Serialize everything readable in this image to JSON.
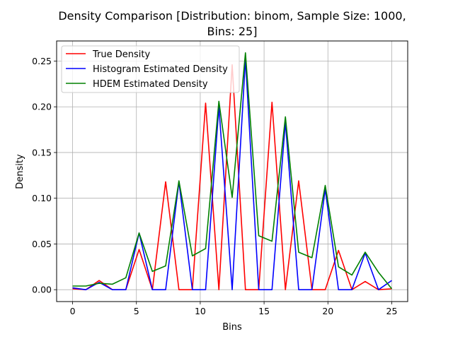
{
  "chart_data": {
    "type": "line",
    "title_line1": "Density Comparison [Distribution: binom, Sample Size: 1000,",
    "title_line2": "Bins: 25]",
    "xlabel": "Bins",
    "ylabel": "Density",
    "xlim": [
      -1.25,
      26.25
    ],
    "ylim": [
      -0.013,
      0.272
    ],
    "xticks": [
      0,
      5,
      10,
      15,
      20,
      25
    ],
    "xtick_labels": [
      "0",
      "5",
      "10",
      "15",
      "20",
      "25"
    ],
    "yticks": [
      0.0,
      0.05,
      0.1,
      0.15,
      0.2,
      0.25
    ],
    "ytick_labels": [
      "0.00",
      "0.05",
      "0.10",
      "0.15",
      "0.20",
      "0.25"
    ],
    "grid": true,
    "legend_position": "top-left",
    "x": [
      0,
      1.04,
      2.08,
      3.12,
      4.17,
      5.21,
      6.25,
      7.29,
      8.33,
      9.38,
      10.42,
      11.46,
      12.5,
      13.54,
      14.58,
      15.62,
      16.67,
      17.71,
      18.75,
      19.79,
      20.83,
      21.88,
      22.92,
      23.96,
      25.0
    ],
    "series": [
      {
        "name": "True Density",
        "color": "#ff0000",
        "values": [
          0.001,
          0.0,
          0.01,
          0.0,
          0.0,
          0.044,
          0.0,
          0.118,
          0.0,
          0.0,
          0.204,
          0.0,
          0.246,
          0.0,
          0.0,
          0.205,
          0.0,
          0.119,
          0.0,
          0.0,
          0.043,
          0.0,
          0.009,
          0.0,
          0.001
        ]
      },
      {
        "name": "Histogram Estimated Density",
        "color": "#0000ff",
        "values": [
          0.002,
          0.0,
          0.008,
          0.0,
          0.0,
          0.062,
          0.0,
          0.0,
          0.118,
          0.0,
          0.0,
          0.2,
          0.0,
          0.252,
          0.0,
          0.0,
          0.183,
          0.0,
          0.0,
          0.11,
          0.0,
          0.0,
          0.04,
          0.0,
          0.01
        ]
      },
      {
        "name": "HDEM Estimated Density",
        "color": "#008000",
        "values": [
          0.004,
          0.004,
          0.007,
          0.006,
          0.013,
          0.062,
          0.02,
          0.026,
          0.119,
          0.037,
          0.045,
          0.206,
          0.101,
          0.259,
          0.059,
          0.053,
          0.189,
          0.041,
          0.035,
          0.114,
          0.025,
          0.016,
          0.041,
          0.019,
          0.001
        ]
      }
    ]
  }
}
